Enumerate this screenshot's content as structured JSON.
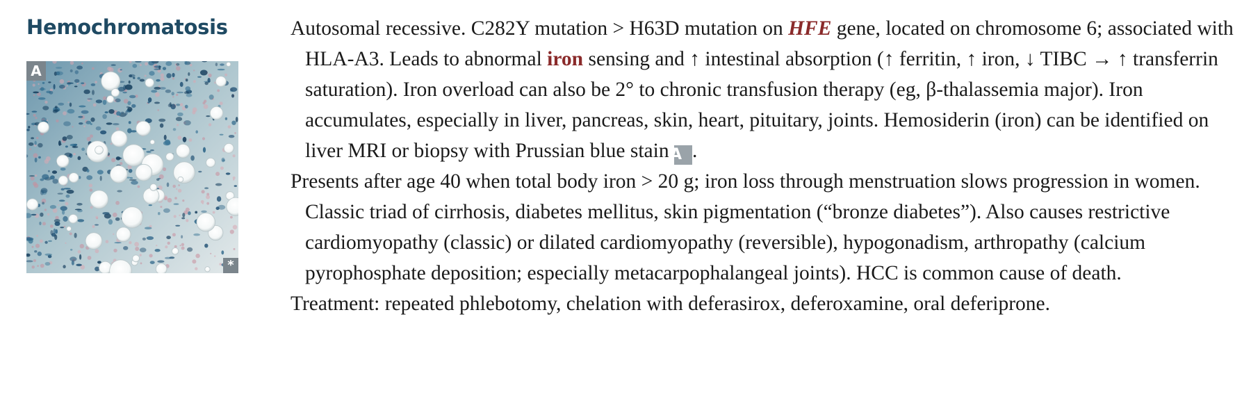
{
  "sidebar": {
    "title": "Hemochromatosis",
    "figure": {
      "label": "A",
      "corner_mark": "*",
      "alt": "Prussian blue stain of liver biopsy"
    }
  },
  "body": {
    "p1": {
      "s1": "Autosomal recessive. C282Y mutation > H63D mutation on ",
      "gene": "HFE",
      "s2": " gene, located on chromosome 6; associated with HLA-A3. Leads to abnormal ",
      "iron": "iron",
      "s3": " sensing and ↑ intestinal absorption (↑ ferritin, ↑ iron, ↓ TIBC → ↑ transferrin saturation). Iron overload can also be 2° to chronic transfusion therapy (eg, β-thalassemia major). Iron accumulates, especially in liver, pancreas, skin, heart, pituitary, joints. Hemosiderin (iron) can be identified on liver MRI or biopsy with Prussian blue stain ",
      "ref": "A",
      "end": "."
    },
    "p2": "Presents after age 40 when total body iron > 20 g; iron loss through menstruation slows progression in women. Classic triad of cirrhosis, diabetes mellitus, skin pigmentation (“bronze diabetes”). Also causes restrictive cardiomyopathy (classic) or dilated cardiomyopathy (reversible), hypogonadism, arthropathy (calcium pyrophosphate deposition; especially metacarpophalangeal joints). HCC is common cause of death.",
    "p3": "Treatment: repeated phlebotomy, chelation with deferasirox, deferoxamine, oral deferiprone."
  },
  "colors": {
    "title": "#1f4a63",
    "highlight": "#8a2a2a",
    "label_bg": "#7b858c"
  }
}
